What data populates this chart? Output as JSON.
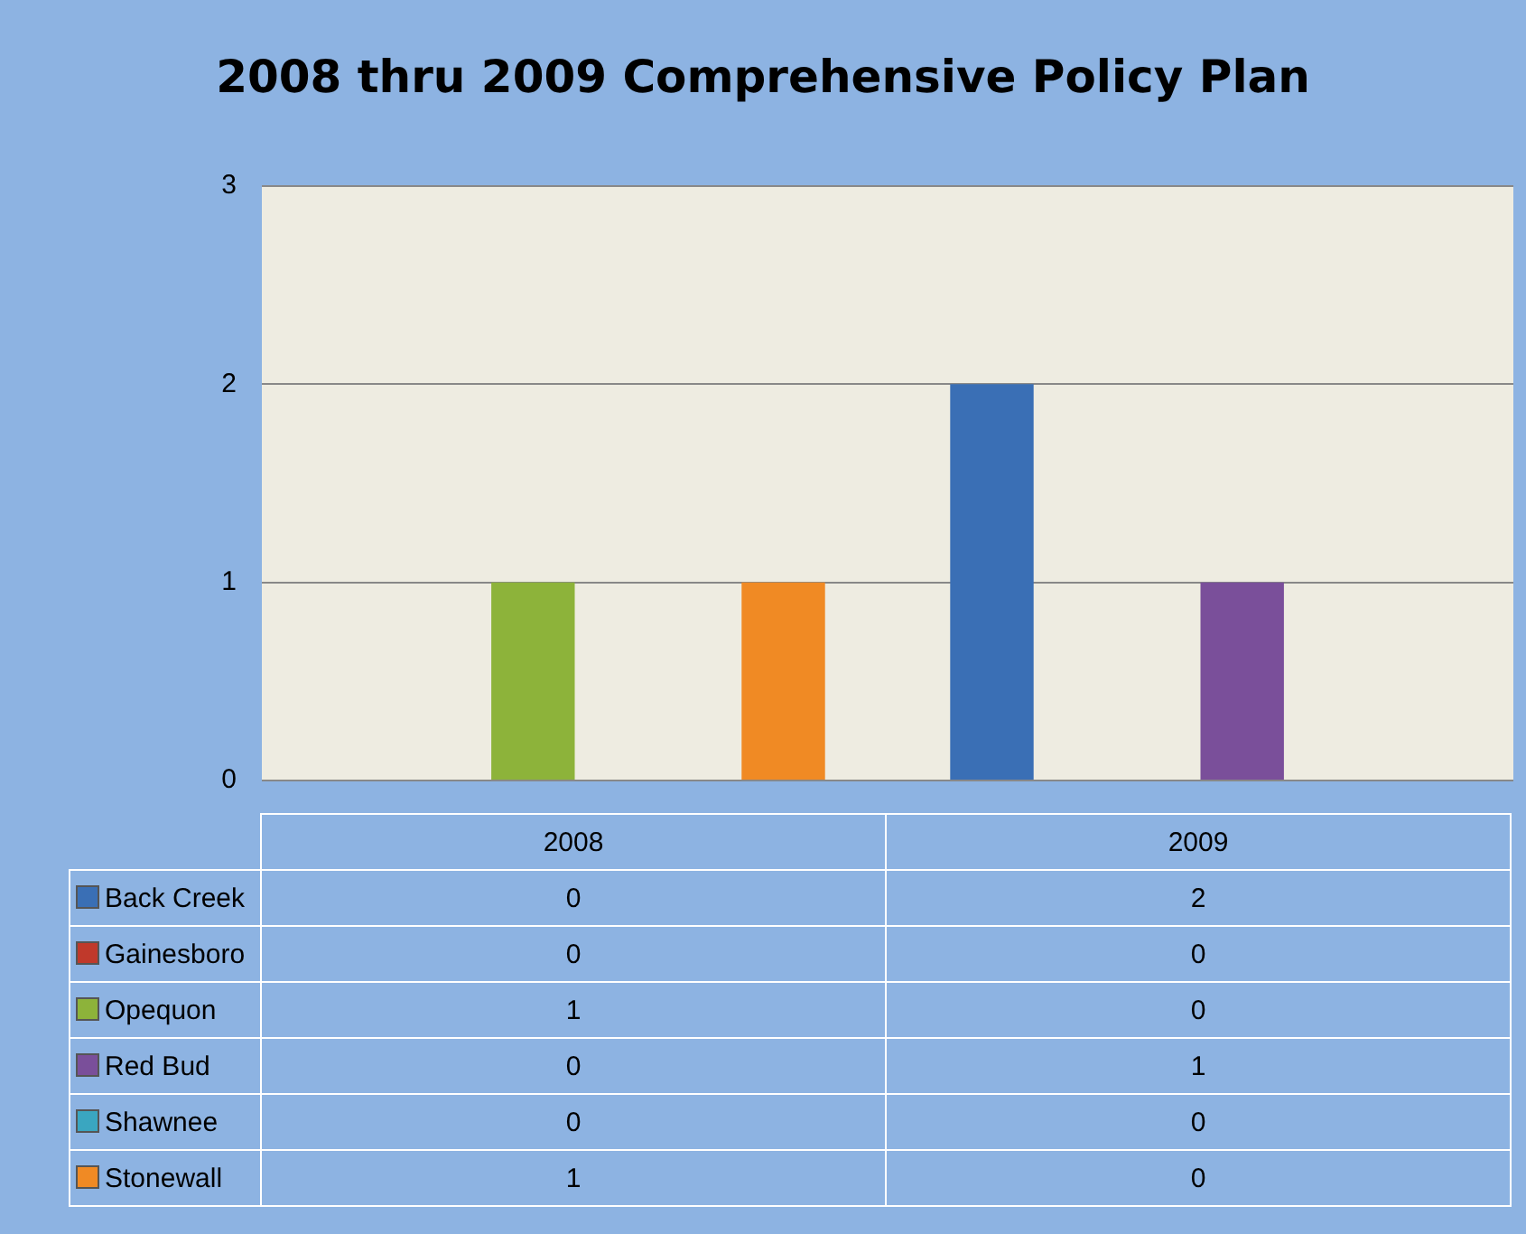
{
  "chart_data": {
    "type": "bar",
    "title": "2008 thru 2009 Comprehensive Policy Plan",
    "categories": [
      "2008",
      "2009"
    ],
    "series": [
      {
        "name": "Back Creek",
        "color": "#3a6fb5",
        "values": [
          0,
          2
        ]
      },
      {
        "name": "Gainesboro",
        "color": "#c0392b",
        "values": [
          0,
          0
        ]
      },
      {
        "name": "Opequon",
        "color": "#8db33a",
        "values": [
          1,
          0
        ]
      },
      {
        "name": "Red Bud",
        "color": "#7a4f9a",
        "values": [
          0,
          1
        ]
      },
      {
        "name": "Shawnee",
        "color": "#3aa6c0",
        "values": [
          0,
          0
        ]
      },
      {
        "name": "Stonewall",
        "color": "#f08a24",
        "values": [
          1,
          0
        ]
      }
    ],
    "ylim": [
      0,
      3
    ],
    "yticks": [
      0,
      1,
      2,
      3
    ],
    "grid": "y",
    "data_labels": true,
    "legend": "bottom left"
  }
}
